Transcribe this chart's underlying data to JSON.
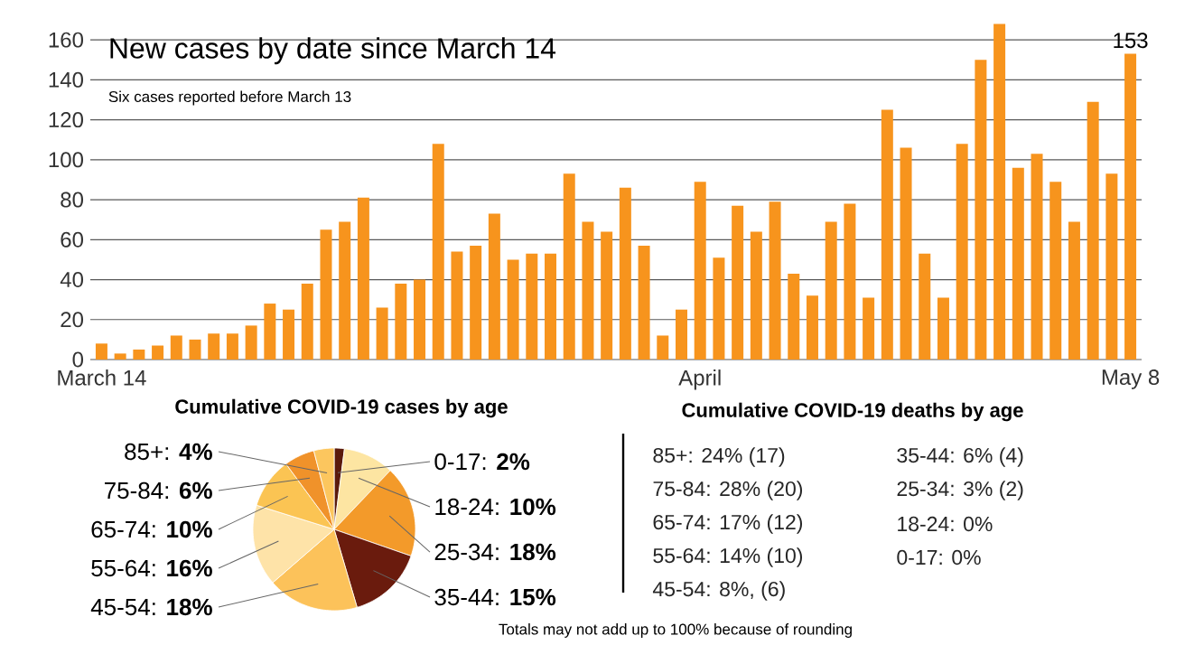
{
  "chart_data": [
    {
      "type": "bar",
      "title": "New cases by date since March 14",
      "subtitle": "Six cases reported before March 13",
      "categories": [
        "March 14",
        null,
        null,
        null,
        null,
        null,
        null,
        null,
        null,
        null,
        null,
        null,
        null,
        null,
        null,
        null,
        null,
        null,
        null,
        null,
        null,
        null,
        null,
        null,
        null,
        null,
        null,
        null,
        null,
        null,
        null,
        null,
        "April",
        null,
        null,
        null,
        null,
        null,
        null,
        null,
        null,
        null,
        null,
        null,
        null,
        null,
        null,
        null,
        null,
        null,
        null,
        null,
        null,
        null,
        null,
        "May 8"
      ],
      "values": [
        8,
        3,
        5,
        7,
        12,
        10,
        13,
        13,
        17,
        28,
        25,
        38,
        65,
        69,
        81,
        26,
        38,
        40,
        108,
        54,
        57,
        73,
        50,
        53,
        53,
        93,
        69,
        64,
        86,
        57,
        12,
        25,
        89,
        51,
        77,
        64,
        79,
        43,
        32,
        69,
        78,
        31,
        125,
        106,
        53,
        31,
        108,
        150,
        168,
        96,
        103,
        89,
        69,
        129,
        93,
        153
      ],
      "value_labels": [
        null,
        null,
        null,
        null,
        null,
        null,
        null,
        null,
        null,
        null,
        null,
        null,
        null,
        null,
        null,
        null,
        null,
        null,
        null,
        null,
        null,
        null,
        null,
        null,
        null,
        null,
        null,
        null,
        null,
        null,
        null,
        null,
        null,
        null,
        null,
        null,
        null,
        null,
        null,
        null,
        null,
        null,
        null,
        null,
        null,
        null,
        null,
        null,
        null,
        null,
        null,
        null,
        null,
        null,
        null,
        "153"
      ],
      "color": "#f7941d",
      "ylim": [
        0,
        170
      ],
      "yticks": [
        0,
        20,
        40,
        60,
        80,
        100,
        120,
        140,
        160
      ],
      "grid": "y"
    },
    {
      "type": "pie",
      "title": "Cumulative COVID-19 cases by age",
      "categories": [
        "0-17: **2%**",
        "18-24: **10%**",
        "25-34: **18%**",
        "35-44: **15%**",
        "45-54: **18%**",
        "55-64: **16%**",
        "65-74: **10%**",
        "75-84: **6%**",
        "85+: **4%**"
      ],
      "values": [
        2,
        10,
        18,
        15,
        18,
        16,
        10,
        6,
        4
      ],
      "colors": [
        "#5a1a0c",
        "#fde5a2",
        "#f39a2a",
        "#6a1b0d",
        "#fcc25a",
        "#fee3a8",
        "#fbc453",
        "#f0922a",
        "#fcc65e"
      ],
      "annotations": [
        "Totals may not add up to 100% because of rounding"
      ]
    },
    {
      "type": "other",
      "title": "Cumulative COVID-19 deaths by age",
      "annotations": [
        "85+: 24% (17)",
        "75-84: 28% (20)",
        "65-74: 17% (12)",
        "55-64: 14% (10)",
        "45-54: 8%, (6)",
        "35-44: 6% (4)",
        "25-34: 3% (2)",
        "18-24: 0%",
        "0-17: 0%"
      ]
    }
  ]
}
